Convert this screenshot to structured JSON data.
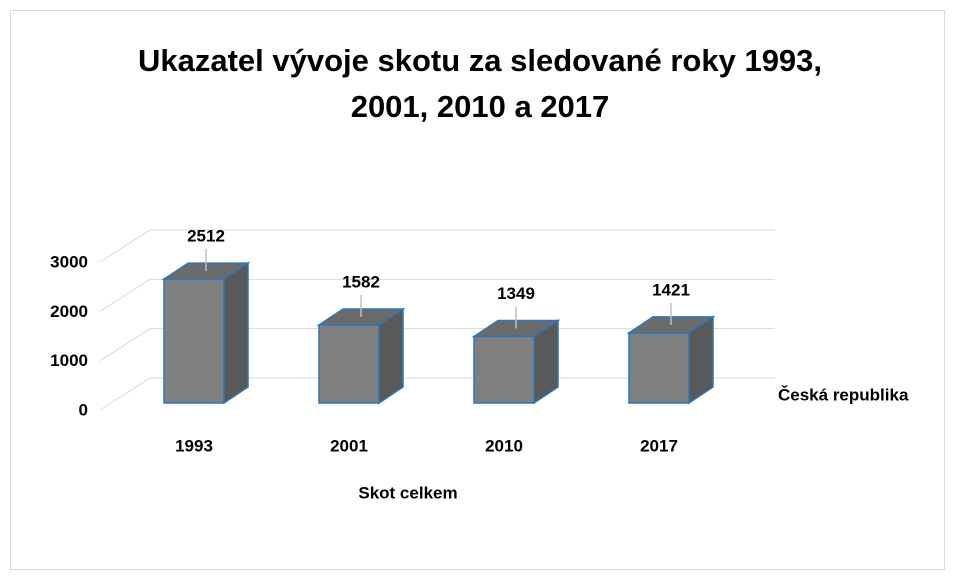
{
  "chart_data": {
    "type": "bar3d",
    "title": "Ukazatel vývoje skotu za sledované roky 1993, 2001, 2010 a 2017",
    "x_label": "Skot celkem",
    "categories": [
      "1993",
      "2001",
      "2010",
      "2017"
    ],
    "series": [
      {
        "name": "Česká republika",
        "color": "#808080",
        "values": [
          2512,
          1582,
          1349,
          1421
        ]
      }
    ],
    "ylim": [
      0,
      3000
    ],
    "yticks": [
      0,
      1000,
      2000,
      3000
    ],
    "grid": true
  }
}
